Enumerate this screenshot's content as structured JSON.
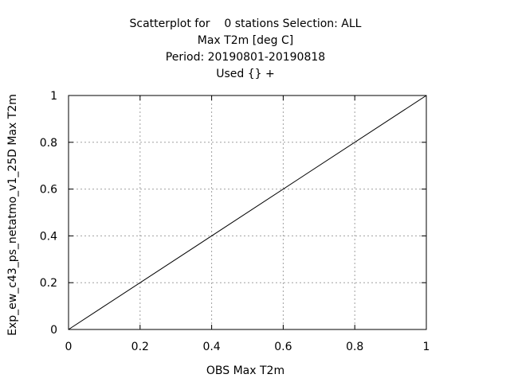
{
  "chart_data": {
    "type": "scatter",
    "title_lines": [
      "Scatterplot for    0 stations Selection: ALL",
      "Max T2m [deg C]",
      "Period: 20190801-20190818",
      "Used {} +"
    ],
    "xlabel": "OBS Max T2m",
    "ylabel": "Exp_ew_c43_ps_netatmo_v1_25D Max T2m",
    "xlim": [
      0,
      1
    ],
    "ylim": [
      0,
      1
    ],
    "x_ticks": [
      0,
      0.2,
      0.4,
      0.6,
      0.8,
      1
    ],
    "x_tick_labels": [
      "0",
      "0.2",
      "0.4",
      "0.6",
      "0.8",
      "1"
    ],
    "y_ticks": [
      0,
      0.2,
      0.4,
      0.6,
      0.8,
      1
    ],
    "y_tick_labels": [
      "0",
      "0.2",
      "0.4",
      "0.6",
      "0.8",
      "1"
    ],
    "grid": true,
    "reference_line": {
      "x": [
        0,
        1
      ],
      "y": [
        0,
        1
      ]
    },
    "points": []
  }
}
